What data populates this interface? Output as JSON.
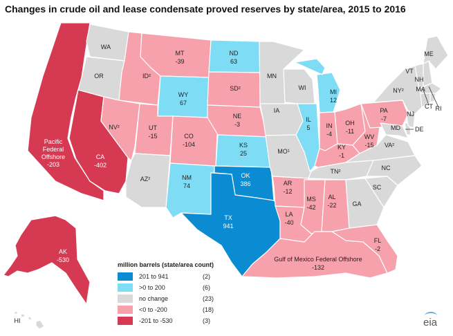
{
  "title": "Changes in crude oil and lease condensate proved reserves by state/area, 2015 to 2016",
  "legend": {
    "title": "million barrels (state/area count)",
    "items": [
      {
        "range": "201 to 941",
        "count": "(2)",
        "color": "#0b8bd1"
      },
      {
        "range": ">0 to 200",
        "count": "(6)",
        "color": "#7fdcf5"
      },
      {
        "range": "no change",
        "count": "(23)",
        "color": "#d9d9d9"
      },
      {
        "range": "<0 to -200",
        "count": "(18)",
        "color": "#f7a1ac"
      },
      {
        "range": "-201 to -530",
        "count": "(3)",
        "color": "#d63a53"
      }
    ]
  },
  "states": {
    "WA": {
      "abbr": "WA",
      "value": ""
    },
    "OR": {
      "abbr": "OR",
      "value": ""
    },
    "CA": {
      "abbr": "CA",
      "value": "-402"
    },
    "NV": {
      "abbr": "NV²",
      "value": ""
    },
    "ID": {
      "abbr": "ID²",
      "value": ""
    },
    "MT": {
      "abbr": "MT",
      "value": "-39"
    },
    "WY": {
      "abbr": "WY",
      "value": "67"
    },
    "UT": {
      "abbr": "UT",
      "value": "-15"
    },
    "CO": {
      "abbr": "CO",
      "value": "-104"
    },
    "AZ": {
      "abbr": "AZ²",
      "value": ""
    },
    "NM": {
      "abbr": "NM",
      "value": "74"
    },
    "ND": {
      "abbr": "ND",
      "value": "63"
    },
    "SD": {
      "abbr": "SD²",
      "value": ""
    },
    "NE": {
      "abbr": "NE",
      "value": "-3"
    },
    "KS": {
      "abbr": "KS",
      "value": "25"
    },
    "OK": {
      "abbr": "OK",
      "value": "386"
    },
    "TX": {
      "abbr": "TX",
      "value": "941"
    },
    "MN": {
      "abbr": "MN",
      "value": ""
    },
    "IA": {
      "abbr": "IA",
      "value": ""
    },
    "MO": {
      "abbr": "MO¹",
      "value": ""
    },
    "AR": {
      "abbr": "AR",
      "value": "-12"
    },
    "LA": {
      "abbr": "LA",
      "value": "-40"
    },
    "WI": {
      "abbr": "WI",
      "value": ""
    },
    "IL": {
      "abbr": "IL",
      "value": "5"
    },
    "MI": {
      "abbr": "MI",
      "value": "12"
    },
    "IN": {
      "abbr": "IN",
      "value": "-4"
    },
    "OH": {
      "abbr": "OH",
      "value": "-11"
    },
    "KY": {
      "abbr": "KY",
      "value": "-1"
    },
    "TN": {
      "abbr": "TN²",
      "value": ""
    },
    "MS": {
      "abbr": "MS",
      "value": "-42"
    },
    "AL": {
      "abbr": "AL",
      "value": "-22"
    },
    "GA": {
      "abbr": "GA",
      "value": ""
    },
    "FL": {
      "abbr": "FL",
      "value": "-2"
    },
    "SC": {
      "abbr": "SC",
      "value": ""
    },
    "NC": {
      "abbr": "NC",
      "value": ""
    },
    "VA": {
      "abbr": "VA²",
      "value": ""
    },
    "WV": {
      "abbr": "WV",
      "value": "-15"
    },
    "PA": {
      "abbr": "PA",
      "value": "-7"
    },
    "NY": {
      "abbr": "NY²",
      "value": ""
    },
    "MD": {
      "abbr": "MD",
      "value": ""
    },
    "DE": {
      "abbr": "DE",
      "value": ""
    },
    "NJ": {
      "abbr": "NJ",
      "value": ""
    },
    "VT": {
      "abbr": "VT",
      "value": ""
    },
    "NH": {
      "abbr": "NH",
      "value": ""
    },
    "ME": {
      "abbr": "ME",
      "value": ""
    },
    "MA": {
      "abbr": "MA",
      "value": ""
    },
    "CT": {
      "abbr": "CT",
      "value": ""
    },
    "RI": {
      "abbr": "RI",
      "value": ""
    },
    "AK": {
      "abbr": "AK",
      "value": "-530"
    },
    "HI": {
      "abbr": "HI",
      "value": ""
    },
    "PAC": {
      "abbr": "Pacific Federal Offshore",
      "value": "-203"
    },
    "GOM": {
      "abbr": "Gulf of Mexico Federal Offshore",
      "value": "-132"
    }
  },
  "logo_text": "eia"
}
